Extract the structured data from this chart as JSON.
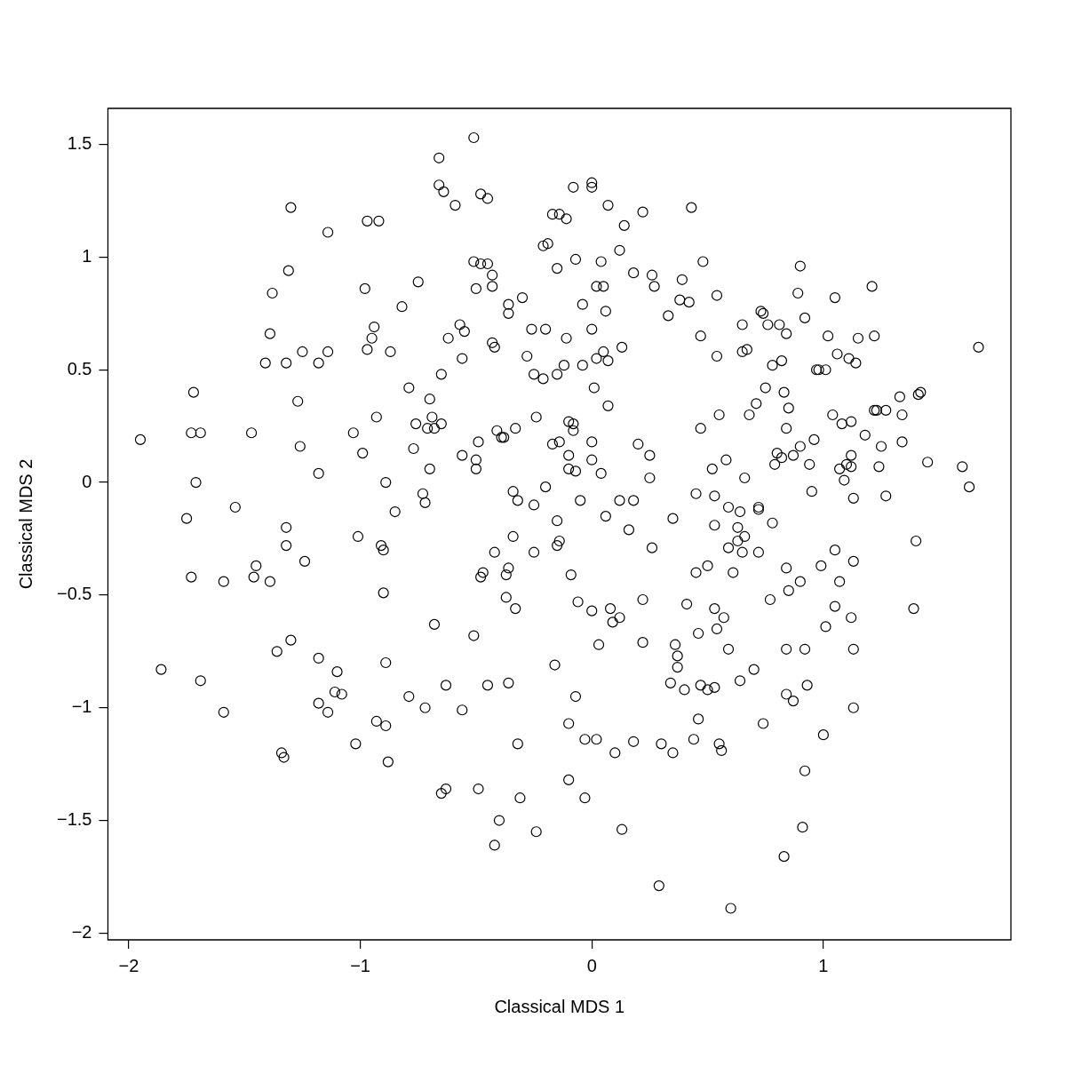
{
  "chart_data": {
    "type": "scatter",
    "xlabel": "Classical MDS 1",
    "ylabel": "Classical MDS 2",
    "color": "#000000",
    "marker": "circle",
    "xlim": [
      -2.09,
      1.81
    ],
    "ylim": [
      -2.03,
      1.66
    ],
    "xticks": [
      -2,
      -1,
      0,
      1
    ],
    "yticks": [
      -2,
      -1.5,
      -1,
      -0.5,
      0,
      0.5,
      1,
      1.5
    ],
    "x": [
      -1.95,
      -1.86,
      -1.72,
      -1.73,
      -1.69,
      -1.71,
      -1.75,
      -1.73,
      -1.69,
      -1.59,
      -1.59,
      -1.54,
      -1.47,
      -1.46,
      -1.45,
      -1.41,
      -1.39,
      -1.38,
      -1.39,
      -1.36,
      -1.34,
      -1.33,
      -1.32,
      -1.32,
      -1.32,
      -1.31,
      -1.3,
      -1.3,
      -1.27,
      -1.26,
      -1.25,
      -1.24,
      -1.18,
      -1.18,
      -1.18,
      -1.18,
      -1.14,
      -1.14,
      -1.14,
      -1.11,
      -1.1,
      -1.08,
      -1.03,
      -1.02,
      -1.01,
      -0.99,
      -0.98,
      -0.97,
      -0.97,
      -0.95,
      -0.94,
      -0.93,
      -0.93,
      -0.92,
      -0.91,
      -0.9,
      -0.9,
      -0.89,
      -0.89,
      -0.89,
      -0.88,
      -0.87,
      -0.85,
      -0.82,
      -0.79,
      -0.79,
      -0.77,
      -0.76,
      -0.75,
      -0.73,
      -0.72,
      -0.71,
      -0.72,
      -0.7,
      -0.7,
      -0.69,
      -0.68,
      -0.68,
      -0.65,
      -0.65,
      -0.66,
      -0.66,
      -0.64,
      -0.65,
      -0.63,
      -0.63,
      -0.62,
      -0.59,
      -0.57,
      -0.56,
      -0.56,
      -0.56,
      -0.55,
      -0.51,
      -0.51,
      -0.51,
      -0.5,
      -0.5,
      -0.5,
      -0.49,
      -0.49,
      -0.48,
      -0.48,
      -0.48,
      -0.47,
      -0.45,
      -0.45,
      -0.45,
      -0.43,
      -0.43,
      -0.43,
      -0.42,
      -0.42,
      -0.42,
      -0.41,
      -0.4,
      -0.39,
      -0.38,
      -0.37,
      -0.37,
      -0.36,
      -0.36,
      -0.36,
      -0.36,
      -0.34,
      -0.34,
      -0.33,
      -0.33,
      -0.32,
      -0.32,
      -0.31,
      -0.3,
      -0.28,
      -0.26,
      -0.25,
      -0.25,
      -0.25,
      -0.24,
      -0.24,
      -0.21,
      -0.21,
      -0.2,
      -0.2,
      -0.19,
      -0.17,
      -0.17,
      -0.16,
      -0.15,
      -0.15,
      -0.15,
      -0.15,
      -0.14,
      -0.14,
      -0.14,
      -0.12,
      -0.11,
      -0.11,
      -0.1,
      -0.1,
      -0.1,
      -0.1,
      -0.1,
      -0.09,
      -0.08,
      -0.08,
      -0.08,
      -0.07,
      -0.07,
      -0.07,
      -0.06,
      -0.05,
      -0.04,
      -0.04,
      -0.03,
      -0.03,
      0,
      0,
      0,
      0,
      0.01,
      0,
      0,
      0.02,
      0.02,
      0.02,
      0.03,
      0.04,
      0.04,
      0.05,
      0.05,
      0.06,
      0.06,
      0.07,
      0.07,
      0.07,
      0.08,
      0.09,
      0.1,
      0.12,
      0.12,
      0.12,
      0.13,
      0.13,
      0.14,
      0.16,
      0.18,
      0.18,
      0.18,
      0.2,
      0.22,
      0.22,
      0.22,
      0.25,
      0.25,
      0.26,
      0.26,
      0.27,
      0.29,
      0.3,
      0.33,
      0.34,
      0.35,
      0.35,
      0.36,
      0.37,
      0.37,
      0.38,
      0.39,
      0.4,
      0.41,
      0.42,
      0.43,
      0.44,
      0.45,
      0.45,
      0.46,
      0.46,
      0.47,
      0.47,
      0.47,
      0.48,
      0.5,
      0.5,
      0.52,
      0.53,
      0.53,
      0.53,
      0.53,
      0.54,
      0.54,
      0.54,
      0.55,
      0.55,
      0.56,
      0.57,
      0.58,
      0.59,
      0.59,
      0.59,
      0.6,
      0.61,
      0.63,
      0.63,
      0.64,
      0.64,
      0.65,
      0.65,
      0.65,
      0.66,
      0.66,
      0.67,
      0.68,
      0.7,
      0.71,
      0.72,
      0.72,
      0.72,
      0.73,
      0.74,
      0.74,
      0.75,
      0.76,
      0.77,
      0.78,
      0.78,
      0.79,
      0.8,
      0.81,
      0.82,
      0.82,
      0.83,
      0.83,
      0.84,
      0.84,
      0.84,
      0.84,
      0.84,
      0.85,
      0.85,
      0.87,
      0.87,
      0.89,
      0.9,
      0.9,
      0.9,
      0.91,
      0.92,
      0.92,
      0.92,
      0.93,
      0.94,
      0.95,
      0.96,
      0.97,
      0.98,
      0.99,
      1,
      1.01,
      1.01,
      1.02,
      1.04,
      1.05,
      1.05,
      1.05,
      1.06,
      1.07,
      1.07,
      1.08,
      1.09,
      1.1,
      1.11,
      1.12,
      1.12,
      1.12,
      1.12,
      1.13,
      1.13,
      1.13,
      1.13,
      1.14,
      1.15,
      1.18,
      1.21,
      1.22,
      1.22,
      1.23,
      1.24,
      1.25,
      1.27,
      1.27,
      1.33,
      1.34,
      1.34,
      1.39,
      1.4,
      1.41,
      1.42,
      1.45,
      1.6,
      1.63,
      1.67
    ],
    "values": [
      0.19,
      -0.83,
      0.4,
      0.22,
      0.22,
      0,
      -0.16,
      -0.42,
      -0.88,
      -0.44,
      -1.02,
      -0.11,
      0.22,
      -0.42,
      -0.37,
      0.53,
      0.66,
      0.84,
      -0.44,
      -0.75,
      -1.2,
      -1.22,
      -0.2,
      -0.28,
      0.53,
      0.94,
      1.22,
      -0.7,
      0.36,
      0.16,
      0.58,
      -0.35,
      -0.78,
      0.04,
      0.53,
      -0.98,
      -1.02,
      0.58,
      1.11,
      -0.93,
      -0.84,
      -0.94,
      0.22,
      -1.16,
      -0.24,
      0.13,
      0.86,
      0.59,
      1.16,
      0.64,
      0.69,
      0.29,
      -1.06,
      1.16,
      -0.28,
      -0.49,
      -0.3,
      0,
      -0.8,
      -1.08,
      -1.24,
      0.58,
      -0.13,
      0.78,
      0.42,
      -0.95,
      0.15,
      0.26,
      0.89,
      -0.05,
      -0.09,
      0.24,
      -1,
      0.06,
      0.37,
      0.29,
      0.24,
      -0.63,
      0.26,
      0.48,
      1.44,
      1.32,
      1.29,
      -1.38,
      -1.36,
      -0.9,
      0.64,
      1.23,
      0.7,
      0.12,
      0.55,
      -1.01,
      0.67,
      1.53,
      0.98,
      -0.68,
      0.06,
      0.1,
      0.86,
      -1.36,
      0.18,
      1.28,
      0.97,
      -0.42,
      -0.4,
      1.26,
      -0.9,
      0.97,
      0.92,
      0.87,
      0.62,
      0.6,
      -0.31,
      -1.61,
      0.23,
      -1.5,
      0.2,
      0.2,
      -0.41,
      -0.51,
      0.79,
      0.75,
      -0.89,
      -0.38,
      -0.24,
      -0.04,
      0.24,
      -0.56,
      -0.08,
      -1.16,
      -1.4,
      0.82,
      0.56,
      0.68,
      -0.31,
      0.48,
      -0.1,
      0.29,
      -1.55,
      0.46,
      1.05,
      -0.02,
      0.68,
      1.06,
      1.19,
      0.17,
      -0.81,
      -0.17,
      0.48,
      -0.28,
      0.95,
      0.18,
      -0.26,
      1.19,
      0.52,
      0.64,
      1.17,
      -1.07,
      0.27,
      0.12,
      0.06,
      -1.32,
      -0.41,
      0.23,
      0.26,
      1.31,
      0.99,
      -0.95,
      0.05,
      -0.53,
      -0.08,
      0.79,
      0.52,
      -1.4,
      -1.14,
      0.1,
      -0.57,
      0.18,
      0.68,
      0.42,
      1.31,
      1.33,
      0.87,
      0.55,
      -1.14,
      -0.72,
      0.98,
      0.04,
      0.87,
      0.58,
      -0.15,
      0.76,
      1.23,
      0.54,
      0.34,
      -0.56,
      -0.62,
      -1.2,
      -0.08,
      -0.6,
      1.03,
      -1.54,
      0.6,
      1.14,
      -0.21,
      -0.08,
      0.93,
      -1.15,
      0.17,
      -0.52,
      1.2,
      -0.71,
      0.02,
      0.12,
      -0.29,
      0.92,
      0.87,
      -1.79,
      -1.16,
      0.74,
      -0.89,
      -1.2,
      -0.16,
      -0.72,
      -0.82,
      -0.77,
      0.81,
      0.9,
      -0.92,
      -0.54,
      0.8,
      1.22,
      -1.14,
      -0.05,
      -0.4,
      -1.05,
      -0.67,
      -0.9,
      0.24,
      0.65,
      0.98,
      -0.37,
      -0.92,
      0.06,
      -0.91,
      -0.06,
      -0.19,
      -0.56,
      -0.65,
      0.56,
      0.83,
      0.3,
      -1.16,
      -1.19,
      -0.6,
      0.1,
      -0.11,
      -0.29,
      -0.74,
      -1.89,
      -0.4,
      -0.2,
      -0.26,
      -0.13,
      -0.88,
      -0.31,
      0.7,
      0.58,
      0.02,
      -0.24,
      0.59,
      0.3,
      -0.83,
      0.35,
      -0.11,
      -0.12,
      -0.31,
      0.76,
      0.75,
      -1.07,
      0.42,
      0.7,
      -0.52,
      0.52,
      -0.18,
      0.08,
      0.13,
      0.7,
      0.54,
      0.11,
      -1.66,
      0.4,
      0.24,
      0.66,
      -0.38,
      -0.74,
      -0.94,
      0.33,
      -0.48,
      0.12,
      -0.97,
      0.84,
      0.96,
      0.16,
      -0.44,
      -1.53,
      0.73,
      -1.28,
      -0.74,
      -0.9,
      0.08,
      -0.04,
      0.19,
      0.5,
      0.5,
      -0.37,
      -1.12,
      0.5,
      -0.64,
      0.65,
      0.3,
      -0.55,
      -0.3,
      0.82,
      0.57,
      -0.44,
      0.06,
      0.26,
      0.01,
      0.08,
      0.55,
      -0.6,
      0.07,
      0.12,
      0.27,
      -0.07,
      -0.35,
      -0.74,
      -1,
      0.53,
      0.64,
      0.21,
      0.87,
      0.32,
      0.65,
      0.32,
      0.07,
      0.16,
      0.32,
      -0.06,
      0.38,
      0.18,
      0.3,
      -0.56,
      -0.26,
      0.39,
      0.4,
      0.09,
      0.07,
      -0.02,
      0.6
    ]
  }
}
